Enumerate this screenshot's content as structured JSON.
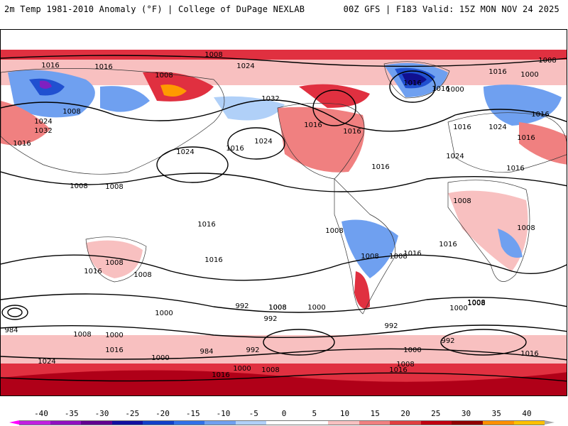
{
  "header": {
    "title_left": "2m Temp 1981-2010 Anomaly (°F) | College of DuPage NEXLAB",
    "title_right": "00Z GFS | F183 Valid: 15Z MON NOV 24 2025"
  },
  "colorbar": {
    "labels": [
      "-40",
      "-35",
      "-30",
      "-25",
      "-20",
      "-15",
      "-10",
      "-5",
      "0",
      "5",
      "10",
      "15",
      "20",
      "25",
      "30",
      "35",
      "40"
    ],
    "colors": [
      "#c020e0",
      "#9010c0",
      "#600090",
      "#1010a0",
      "#1040c8",
      "#3070e8",
      "#6fa0f0",
      "#b0d0f8",
      "#ffffff",
      "#ffffff",
      "#f8c0c0",
      "#f08080",
      "#e04040",
      "#c00010",
      "#900000",
      "#ff9000",
      "#ffc000"
    ],
    "under_color": "#ff00ff",
    "over_color": "#aaaaaa"
  },
  "map": {
    "colors": {
      "warm_light": "#f8c0c0",
      "warm_mid": "#f08080",
      "warm_strong": "#e03040",
      "warm_deep": "#b00018",
      "warm_extreme": "#ff9a00",
      "cool_light": "#b0d0f8",
      "cool_mid": "#6fa0f0",
      "cool_strong": "#2050d0",
      "cool_deep": "#101090",
      "cool_extreme": "#8020c0"
    },
    "isobar_labels": [
      "1008",
      "1016",
      "1024",
      "1016",
      "1008",
      "1008",
      "1016",
      "1024",
      "1032",
      "1032",
      "1016",
      "1024",
      "1016",
      "1016",
      "1024",
      "1024",
      "1016",
      "1008",
      "1008",
      "1008",
      "1000",
      "1016",
      "1016",
      "1016",
      "1016",
      "1016",
      "1008",
      "1016",
      "1024",
      "1016",
      "1008",
      "1016",
      "1016",
      "1008",
      "1008",
      "1008",
      "1016",
      "1008",
      "1016",
      "1008",
      "1000",
      "1016",
      "1008",
      "1000",
      "1000",
      "992",
      "992",
      "1008",
      "1000",
      "984",
      "1008",
      "1000",
      "1016",
      "1024",
      "984",
      "992",
      "992",
      "1000",
      "1008",
      "1016",
      "1008",
      "1016",
      "1000",
      "1008",
      "1000",
      "992",
      "1008",
      "1016"
    ]
  }
}
